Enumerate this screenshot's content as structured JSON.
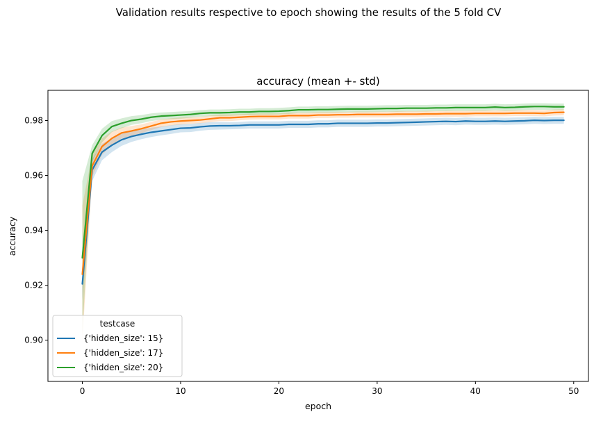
{
  "chart_data": {
    "type": "line",
    "suptitle": "Validation results respective to epoch showing the results of the 5 fold CV",
    "title": "accuracy (mean +- std)",
    "xlabel": "epoch",
    "ylabel": "accuracy",
    "xlim": [
      -3.5,
      51.5
    ],
    "ylim": [
      0.885,
      0.991
    ],
    "xticks": [
      0,
      10,
      20,
      30,
      40,
      50
    ],
    "xtick_labels": [
      "0",
      "10",
      "20",
      "30",
      "40",
      "50"
    ],
    "yticks": [
      0.9,
      0.92,
      0.94,
      0.96,
      0.98
    ],
    "ytick_labels": [
      "0.90",
      "0.92",
      "0.94",
      "0.96",
      "0.98"
    ],
    "grid": false,
    "legend": {
      "title": "testcase",
      "placement": "lower-left"
    },
    "x": [
      0,
      1,
      2,
      3,
      4,
      5,
      6,
      7,
      8,
      9,
      10,
      11,
      12,
      13,
      14,
      15,
      16,
      17,
      18,
      19,
      20,
      21,
      22,
      23,
      24,
      25,
      26,
      27,
      28,
      29,
      30,
      31,
      32,
      33,
      34,
      35,
      36,
      37,
      38,
      39,
      40,
      41,
      42,
      43,
      44,
      45,
      46,
      47,
      48,
      49
    ],
    "series": [
      {
        "name": "{'hidden_size': 15}",
        "color": "#1f77b4",
        "values": [
          0.9205,
          0.962,
          0.9685,
          0.971,
          0.973,
          0.9742,
          0.975,
          0.9757,
          0.9762,
          0.9767,
          0.9772,
          0.9773,
          0.9777,
          0.978,
          0.9781,
          0.9781,
          0.9782,
          0.9784,
          0.9784,
          0.9784,
          0.9784,
          0.9786,
          0.9786,
          0.9786,
          0.9788,
          0.9788,
          0.979,
          0.979,
          0.979,
          0.979,
          0.9791,
          0.9791,
          0.9792,
          0.9793,
          0.9794,
          0.9795,
          0.9796,
          0.9797,
          0.9796,
          0.9798,
          0.9797,
          0.9797,
          0.9798,
          0.9797,
          0.9798,
          0.9799,
          0.9801,
          0.98,
          0.9801,
          0.9801
        ],
        "std": [
          0.006,
          0.004,
          0.003,
          0.0025,
          0.0022,
          0.002,
          0.0018,
          0.0017,
          0.0016,
          0.0016,
          0.0015,
          0.0015,
          0.0014,
          0.0014,
          0.0014,
          0.0013,
          0.0013,
          0.0013,
          0.0013,
          0.0013,
          0.0013,
          0.0013,
          0.0013,
          0.0013,
          0.0013,
          0.0013,
          0.0013,
          0.0013,
          0.0013,
          0.0013,
          0.0013,
          0.0013,
          0.0013,
          0.0013,
          0.0013,
          0.0013,
          0.0013,
          0.0013,
          0.0013,
          0.0013,
          0.0013,
          0.0013,
          0.0013,
          0.0013,
          0.0013,
          0.0013,
          0.0013,
          0.0013,
          0.0013,
          0.0013
        ]
      },
      {
        "name": "{'hidden_size': 17}",
        "color": "#ff7f0e",
        "values": [
          0.924,
          0.9635,
          0.9705,
          0.9735,
          0.9755,
          0.9762,
          0.977,
          0.978,
          0.979,
          0.9795,
          0.9798,
          0.98,
          0.9802,
          0.9806,
          0.981,
          0.981,
          0.9812,
          0.9814,
          0.9815,
          0.9815,
          0.9815,
          0.9818,
          0.9818,
          0.9818,
          0.982,
          0.982,
          0.9821,
          0.9821,
          0.9822,
          0.9822,
          0.9822,
          0.9822,
          0.9823,
          0.9823,
          0.9823,
          0.9824,
          0.9824,
          0.9825,
          0.9825,
          0.9825,
          0.9826,
          0.9826,
          0.9826,
          0.9826,
          0.9827,
          0.9827,
          0.9827,
          0.9826,
          0.9829,
          0.983
        ],
        "std": [
          0.025,
          0.004,
          0.003,
          0.0025,
          0.002,
          0.0018,
          0.0016,
          0.0015,
          0.0014,
          0.0013,
          0.0013,
          0.0012,
          0.0012,
          0.0012,
          0.0012,
          0.0012,
          0.0011,
          0.0011,
          0.0011,
          0.0011,
          0.0011,
          0.0011,
          0.0011,
          0.0011,
          0.0011,
          0.0011,
          0.0011,
          0.0011,
          0.0011,
          0.0011,
          0.0011,
          0.0011,
          0.0011,
          0.0011,
          0.0011,
          0.0011,
          0.0011,
          0.0011,
          0.0011,
          0.0011,
          0.0011,
          0.0011,
          0.0011,
          0.0011,
          0.0011,
          0.0011,
          0.0011,
          0.0011,
          0.0011,
          0.0011
        ]
      },
      {
        "name": "{'hidden_size': 20}",
        "color": "#2ca02c",
        "values": [
          0.93,
          0.968,
          0.9745,
          0.9778,
          0.979,
          0.98,
          0.9805,
          0.9812,
          0.9816,
          0.9818,
          0.982,
          0.9822,
          0.9826,
          0.9828,
          0.9828,
          0.9829,
          0.9831,
          0.9831,
          0.9833,
          0.9833,
          0.9834,
          0.9836,
          0.9839,
          0.9839,
          0.984,
          0.984,
          0.9841,
          0.9842,
          0.9842,
          0.9842,
          0.9843,
          0.9844,
          0.9844,
          0.9845,
          0.9845,
          0.9845,
          0.9846,
          0.9846,
          0.9847,
          0.9847,
          0.9847,
          0.9847,
          0.9849,
          0.9847,
          0.9848,
          0.985,
          0.9851,
          0.9851,
          0.985,
          0.985
        ],
        "std": [
          0.028,
          0.003,
          0.0025,
          0.002,
          0.0018,
          0.0016,
          0.0015,
          0.0014,
          0.0013,
          0.0013,
          0.0013,
          0.0012,
          0.0012,
          0.0012,
          0.0012,
          0.0012,
          0.0012,
          0.0012,
          0.0012,
          0.0012,
          0.0012,
          0.0012,
          0.0012,
          0.0012,
          0.0012,
          0.0012,
          0.0012,
          0.0012,
          0.0012,
          0.0012,
          0.0012,
          0.0012,
          0.0012,
          0.0012,
          0.0012,
          0.0012,
          0.0012,
          0.0012,
          0.0012,
          0.0012,
          0.0012,
          0.0012,
          0.0012,
          0.0012,
          0.0012,
          0.0012,
          0.0012,
          0.0012,
          0.0012,
          0.0012
        ]
      }
    ]
  }
}
